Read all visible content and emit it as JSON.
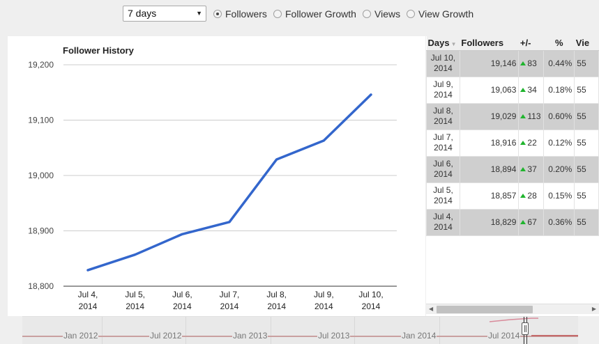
{
  "controls": {
    "range_selected": "7 days",
    "radios": [
      {
        "label": "Followers",
        "checked": true
      },
      {
        "label": "Follower Growth",
        "checked": false
      },
      {
        "label": "Views",
        "checked": false
      },
      {
        "label": "View Growth",
        "checked": false
      }
    ]
  },
  "chart_data": {
    "type": "line",
    "title": "Follower History",
    "categories": [
      "Jul 4, 2014",
      "Jul 5, 2014",
      "Jul 6, 2014",
      "Jul 7, 2014",
      "Jul 8, 2014",
      "Jul 9, 2014",
      "Jul 10, 2014"
    ],
    "series": [
      {
        "values": [
          18829,
          18857,
          18894,
          18916,
          19029,
          19063,
          19146
        ],
        "color": "#3366cc"
      }
    ],
    "yticks": [
      "19,200",
      "19,100",
      "19,000",
      "18,900",
      "18,800"
    ],
    "ylim": [
      18800,
      19200
    ],
    "grid": true
  },
  "table": {
    "headers": [
      "Days",
      "Followers",
      "+/-",
      "%",
      "Vie"
    ],
    "rows": [
      {
        "day": "Jul 10, 2014",
        "followers": "19,146",
        "change": "83",
        "pct": "0.44%",
        "views": "55"
      },
      {
        "day": "Jul 9, 2014",
        "followers": "19,063",
        "change": "34",
        "pct": "0.18%",
        "views": "55"
      },
      {
        "day": "Jul 8, 2014",
        "followers": "19,029",
        "change": "113",
        "pct": "0.60%",
        "views": "55"
      },
      {
        "day": "Jul 7, 2014",
        "followers": "18,916",
        "change": "22",
        "pct": "0.12%",
        "views": "55"
      },
      {
        "day": "Jul 6, 2014",
        "followers": "18,894",
        "change": "37",
        "pct": "0.20%",
        "views": "55"
      },
      {
        "day": "Jul 5, 2014",
        "followers": "18,857",
        "change": "28",
        "pct": "0.15%",
        "views": "55"
      },
      {
        "day": "Jul 4, 2014",
        "followers": "18,829",
        "change": "67",
        "pct": "0.36%",
        "views": "55"
      }
    ]
  },
  "navigator": {
    "labels": [
      "Jan 2012",
      "Jul 2012",
      "Jan 2013",
      "Jul 2013",
      "Jan 2014",
      "Jul 2014"
    ]
  }
}
